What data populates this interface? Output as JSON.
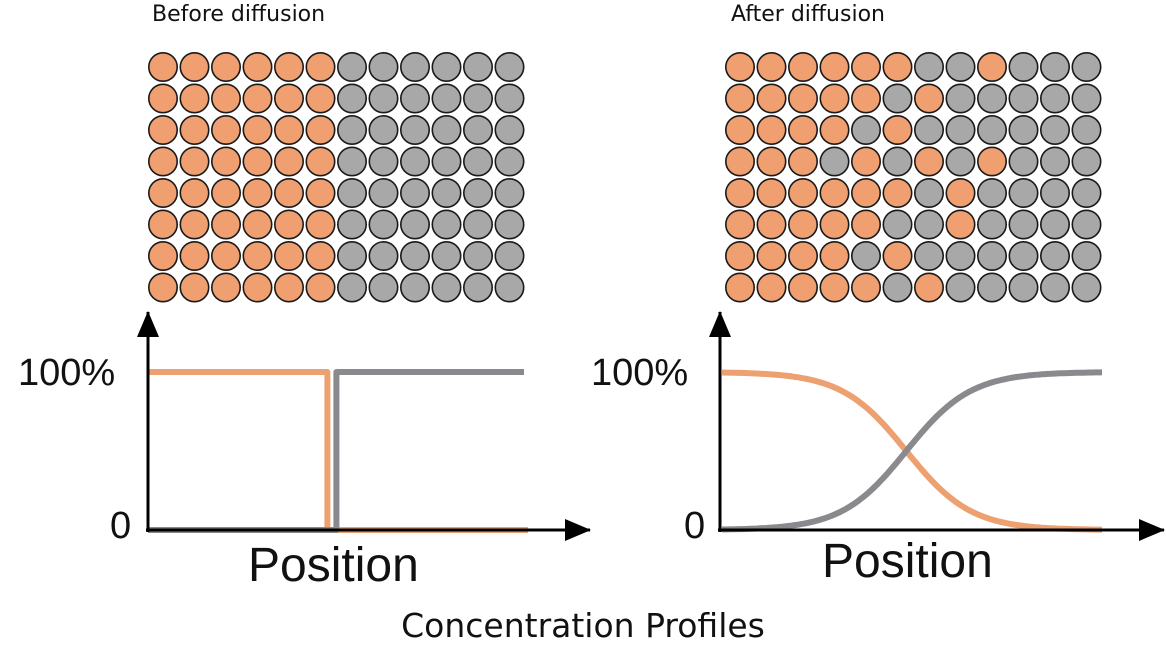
{
  "panels": [
    {
      "title": "Before diffusion",
      "grid": [
        "AAAAAABBBBBB",
        "AAAAAABBBBBB",
        "AAAAAABBBBBB",
        "AAAAAABBBBBB",
        "AAAAAABBBBBB",
        "AAAAAABBBBBB",
        "AAAAAABBBBBB",
        "AAAAAABBBBBB"
      ],
      "y_top_label": "100%",
      "y_bottom_label": "0",
      "x_label": "Position",
      "profile": "step"
    },
    {
      "title": "After diffusion",
      "grid": [
        "AAAAAABBABBB",
        "AAAAABABBBBB",
        "AAAABABBBBBB",
        "AAABABABABBB",
        "AAAAAABABBBB",
        "AAAAABBABBBB",
        "AAAABABBBBBB",
        "AAAAABABBBBB"
      ],
      "y_top_label": "100%",
      "y_bottom_label": "0",
      "x_label": "Position",
      "profile": "sigmoid"
    }
  ],
  "caption": "Concentration Profiles",
  "colors": {
    "species_a": "#F0A070",
    "species_b": "#A8A8A8",
    "curve_a": "#EDA070",
    "curve_b": "#8A8A8E",
    "outline": "#1a1a1a"
  }
}
